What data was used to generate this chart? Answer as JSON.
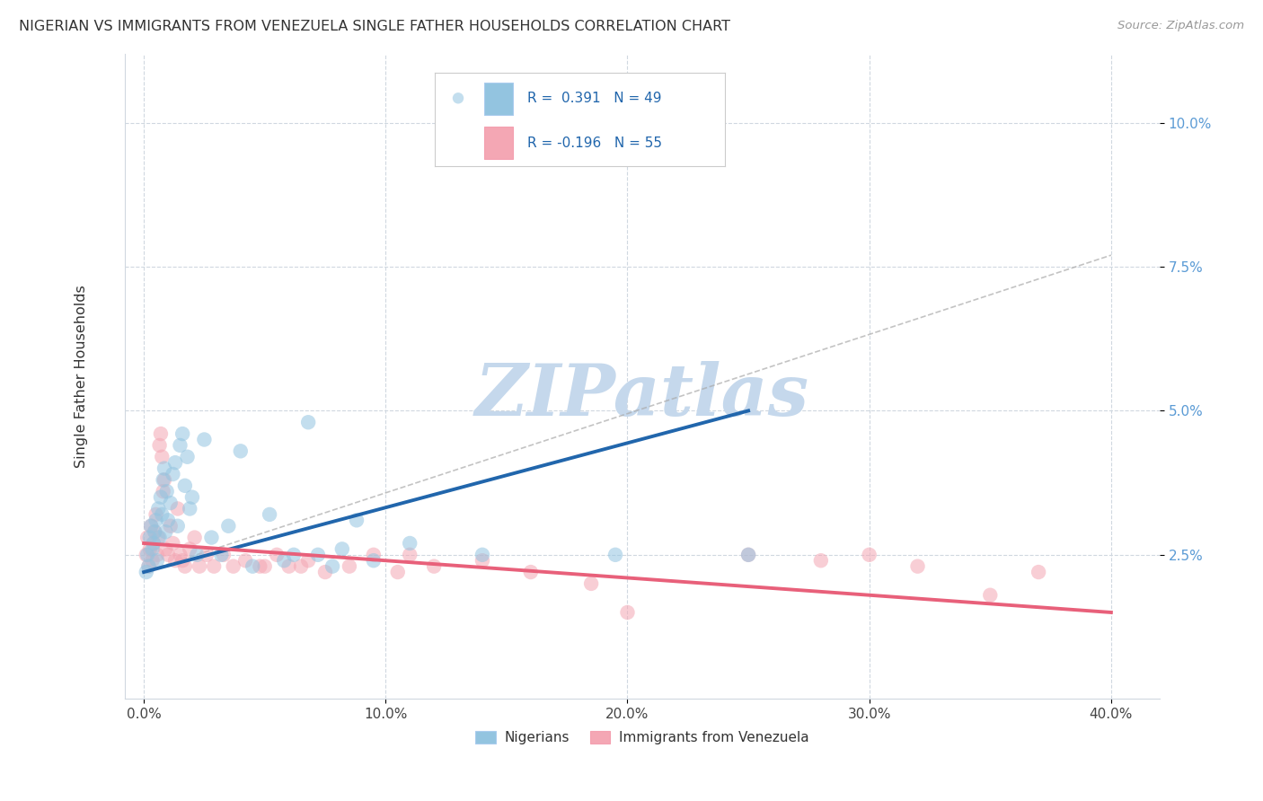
{
  "title": "NIGERIAN VS IMMIGRANTS FROM VENEZUELA SINGLE FATHER HOUSEHOLDS CORRELATION CHART",
  "source": "Source: ZipAtlas.com",
  "xlabel_vals": [
    0.0,
    10.0,
    20.0,
    30.0,
    40.0
  ],
  "ylabel_vals": [
    2.5,
    5.0,
    7.5,
    10.0
  ],
  "ylabel_right_labels": [
    "2.5%",
    "5.0%",
    "7.5%",
    "10.0%"
  ],
  "xlim": [
    -0.8,
    42.0
  ],
  "ylim": [
    0.0,
    11.2
  ],
  "blue_R": 0.391,
  "blue_N": 49,
  "pink_R": -0.196,
  "pink_N": 55,
  "blue_color": "#93c4e0",
  "pink_color": "#f4a7b4",
  "blue_line_color": "#2166ac",
  "pink_line_color": "#e8607a",
  "watermark": "ZIPatlas",
  "watermark_color": "#c5d8ec",
  "legend_label_blue": "Nigerians",
  "legend_label_pink": "Immigrants from Venezuela",
  "blue_scatter_x": [
    0.1,
    0.15,
    0.2,
    0.25,
    0.3,
    0.35,
    0.4,
    0.45,
    0.5,
    0.55,
    0.6,
    0.65,
    0.7,
    0.75,
    0.8,
    0.85,
    0.9,
    0.95,
    1.0,
    1.1,
    1.2,
    1.3,
    1.4,
    1.5,
    1.6,
    1.7,
    1.8,
    1.9,
    2.0,
    2.2,
    2.5,
    2.8,
    3.2,
    3.5,
    4.0,
    4.5,
    5.2,
    5.8,
    6.2,
    6.8,
    7.2,
    7.8,
    8.2,
    8.8,
    9.5,
    11.0,
    14.0,
    19.5,
    25.0
  ],
  "blue_scatter_y": [
    2.2,
    2.5,
    2.3,
    2.8,
    3.0,
    2.6,
    2.7,
    2.9,
    3.1,
    2.4,
    3.3,
    2.8,
    3.5,
    3.2,
    3.8,
    4.0,
    2.9,
    3.6,
    3.1,
    3.4,
    3.9,
    4.1,
    3.0,
    4.4,
    4.6,
    3.7,
    4.2,
    3.3,
    3.5,
    2.5,
    4.5,
    2.8,
    2.5,
    3.0,
    4.3,
    2.3,
    3.2,
    2.4,
    2.5,
    4.8,
    2.5,
    2.3,
    2.6,
    3.1,
    2.4,
    2.7,
    2.5,
    2.5,
    2.5
  ],
  "pink_scatter_x": [
    0.1,
    0.15,
    0.2,
    0.25,
    0.3,
    0.35,
    0.4,
    0.45,
    0.5,
    0.55,
    0.6,
    0.65,
    0.7,
    0.75,
    0.8,
    0.85,
    0.9,
    1.0,
    1.1,
    1.2,
    1.3,
    1.4,
    1.5,
    1.6,
    1.7,
    1.9,
    2.1,
    2.3,
    2.6,
    2.9,
    3.3,
    3.7,
    4.2,
    4.8,
    5.5,
    6.0,
    6.8,
    7.5,
    8.5,
    9.5,
    10.5,
    12.0,
    14.0,
    16.0,
    20.0,
    25.0,
    28.0,
    30.0,
    32.0,
    35.0,
    37.0,
    18.5,
    11.0,
    6.5,
    5.0
  ],
  "pink_scatter_y": [
    2.5,
    2.8,
    2.3,
    2.6,
    3.0,
    2.4,
    2.7,
    2.9,
    3.2,
    2.5,
    2.8,
    4.4,
    4.6,
    4.2,
    3.6,
    3.8,
    2.6,
    2.5,
    3.0,
    2.7,
    2.4,
    3.3,
    2.5,
    2.4,
    2.3,
    2.6,
    2.8,
    2.3,
    2.5,
    2.3,
    2.5,
    2.3,
    2.4,
    2.3,
    2.5,
    2.3,
    2.4,
    2.2,
    2.3,
    2.5,
    2.2,
    2.3,
    2.4,
    2.2,
    1.5,
    2.5,
    2.4,
    2.5,
    2.3,
    1.8,
    2.2,
    2.0,
    2.5,
    2.3,
    2.3
  ],
  "blue_line_x0": 0.0,
  "blue_line_x1": 25.0,
  "blue_line_y0": 2.2,
  "blue_line_y1": 5.0,
  "pink_line_x0": 0.0,
  "pink_line_x1": 40.0,
  "pink_line_y0": 2.7,
  "pink_line_y1": 1.5,
  "dash_line_x0": 0.0,
  "dash_line_x1": 40.0,
  "dash_line_y0": 2.2,
  "dash_line_y1": 7.7,
  "grid_color": "#d0d8e0",
  "spine_color": "#d0d8e0"
}
